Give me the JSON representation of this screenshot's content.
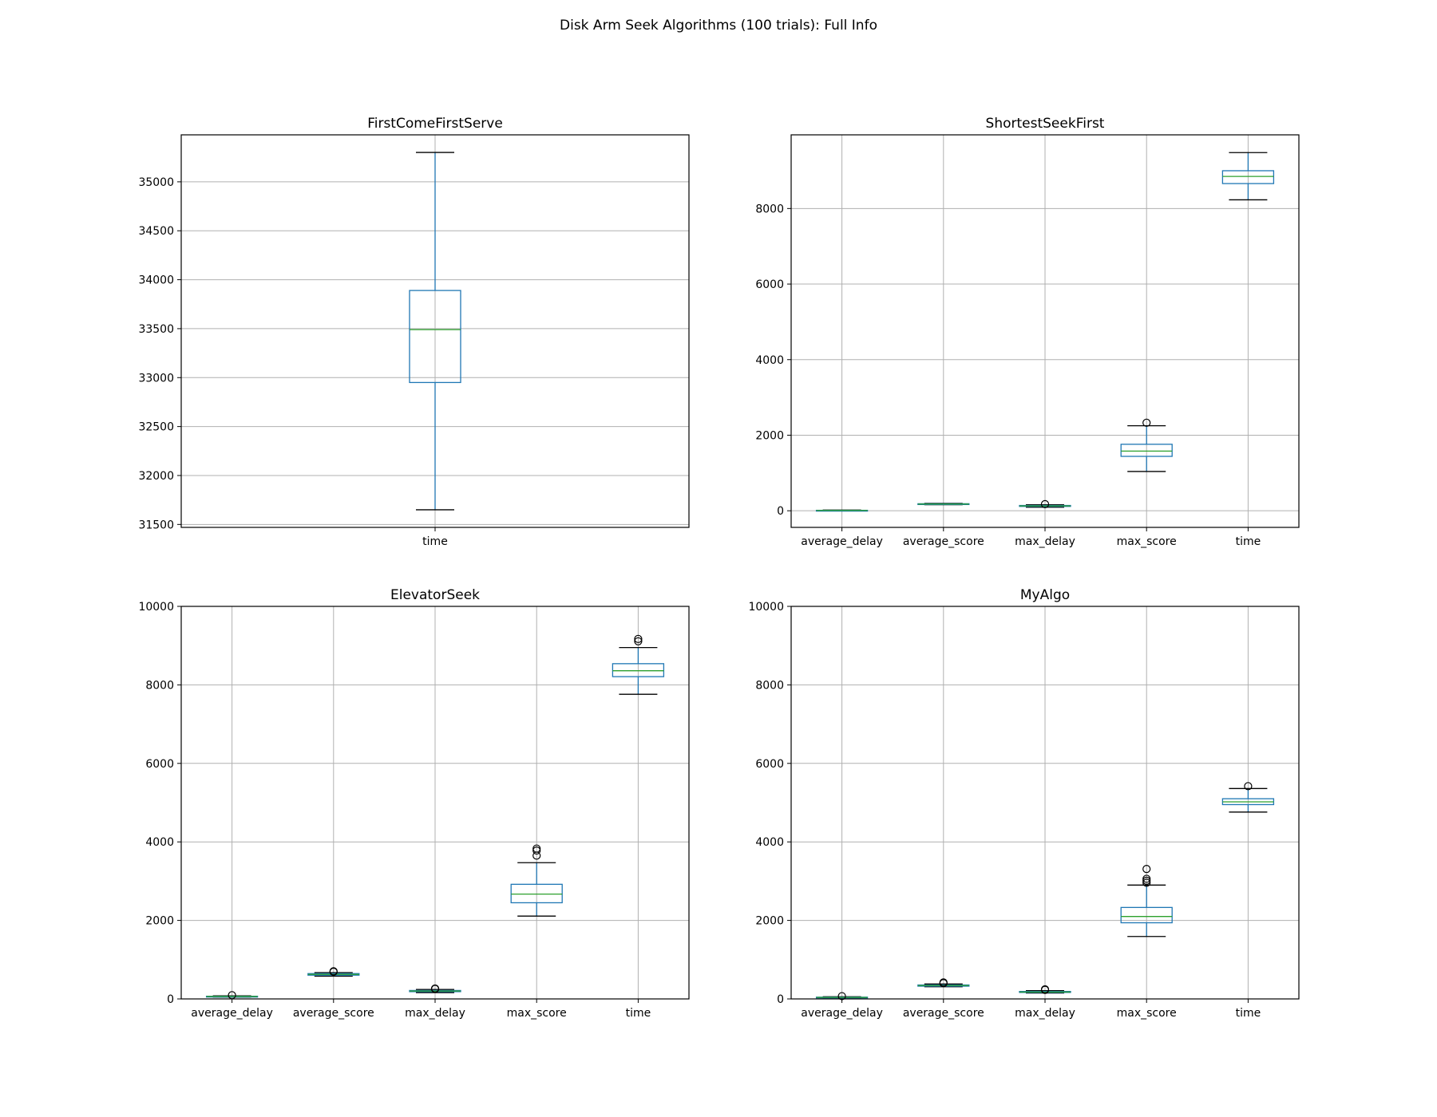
{
  "figure": {
    "title": "Disk Arm Seek Algorithms (100 trials): Full Info"
  },
  "colors": {
    "box": "#1f77b4",
    "median": "#2ca02c",
    "whisker_cap": "#000000",
    "grid": "#b0b0b0",
    "frame": "#000000"
  },
  "chart_data": [
    {
      "type": "box",
      "title": "FirstComeFirstServe",
      "xlabel": "",
      "ylabel": "",
      "grid": true,
      "ylim": [
        31470,
        35480
      ],
      "yticks": [
        31500,
        32000,
        32500,
        33000,
        33500,
        34000,
        34500,
        35000
      ],
      "categories": [
        "time"
      ],
      "boxes": [
        {
          "name": "time",
          "whislo": 31650,
          "q1": 32950,
          "med": 33490,
          "q3": 33890,
          "whishi": 35300,
          "fliers": []
        }
      ]
    },
    {
      "type": "box",
      "title": "ShortestSeekFirst",
      "xlabel": "",
      "ylabel": "",
      "grid": true,
      "ylim": [
        -440,
        9950
      ],
      "yticks": [
        0,
        2000,
        4000,
        6000,
        8000
      ],
      "categories": [
        "average_delay",
        "average_score",
        "max_delay",
        "max_score",
        "time"
      ],
      "boxes": [
        {
          "name": "average_delay",
          "whislo": 0,
          "q1": 5,
          "med": 8,
          "q3": 12,
          "whishi": 20,
          "fliers": []
        },
        {
          "name": "average_score",
          "whislo": 160,
          "q1": 170,
          "med": 178,
          "q3": 186,
          "whishi": 195,
          "fliers": []
        },
        {
          "name": "max_delay",
          "whislo": 95,
          "q1": 115,
          "med": 128,
          "q3": 140,
          "whishi": 160,
          "fliers": [
            175
          ]
        },
        {
          "name": "max_score",
          "whislo": 1040,
          "q1": 1440,
          "med": 1580,
          "q3": 1760,
          "whishi": 2250,
          "fliers": [
            2330
          ]
        },
        {
          "name": "time",
          "whislo": 8230,
          "q1": 8660,
          "med": 8850,
          "q3": 9000,
          "whishi": 9480,
          "fliers": []
        }
      ]
    },
    {
      "type": "box",
      "title": "ElevatorSeek",
      "xlabel": "",
      "ylabel": "",
      "grid": true,
      "ylim": [
        0,
        10000
      ],
      "yticks": [
        0,
        2000,
        4000,
        6000,
        8000,
        10000
      ],
      "categories": [
        "average_delay",
        "average_score",
        "max_delay",
        "max_score",
        "time"
      ],
      "boxes": [
        {
          "name": "average_delay",
          "whislo": 45,
          "q1": 55,
          "med": 62,
          "q3": 68,
          "whishi": 78,
          "fliers": [
            95
          ]
        },
        {
          "name": "average_score",
          "whislo": 580,
          "q1": 605,
          "med": 625,
          "q3": 645,
          "whishi": 670,
          "fliers": [
            690,
            705
          ]
        },
        {
          "name": "max_delay",
          "whislo": 160,
          "q1": 185,
          "med": 200,
          "q3": 215,
          "whishi": 240,
          "fliers": [
            255,
            265
          ]
        },
        {
          "name": "max_score",
          "whislo": 2110,
          "q1": 2450,
          "med": 2670,
          "q3": 2920,
          "whishi": 3470,
          "fliers": [
            3650,
            3780,
            3830
          ]
        },
        {
          "name": "time",
          "whislo": 7760,
          "q1": 8210,
          "med": 8360,
          "q3": 8540,
          "whishi": 8950,
          "fliers": [
            9110,
            9170
          ]
        }
      ]
    },
    {
      "type": "box",
      "title": "MyAlgo",
      "xlabel": "",
      "ylabel": "",
      "grid": true,
      "ylim": [
        0,
        10000
      ],
      "yticks": [
        0,
        2000,
        4000,
        6000,
        8000,
        10000
      ],
      "categories": [
        "average_delay",
        "average_score",
        "max_delay",
        "max_score",
        "time"
      ],
      "boxes": [
        {
          "name": "average_delay",
          "whislo": 25,
          "q1": 32,
          "med": 38,
          "q3": 45,
          "whishi": 55,
          "fliers": [
            70
          ]
        },
        {
          "name": "average_score",
          "whislo": 310,
          "q1": 325,
          "med": 340,
          "q3": 355,
          "whishi": 380,
          "fliers": [
            400,
            420
          ]
        },
        {
          "name": "max_delay",
          "whislo": 150,
          "q1": 165,
          "med": 175,
          "q3": 190,
          "whishi": 210,
          "fliers": [
            230,
            245
          ]
        },
        {
          "name": "max_score",
          "whislo": 1590,
          "q1": 1940,
          "med": 2100,
          "q3": 2330,
          "whishi": 2900,
          "fliers": [
            2960,
            3010,
            3060,
            3310
          ]
        },
        {
          "name": "time",
          "whislo": 4760,
          "q1": 4950,
          "med": 5020,
          "q3": 5100,
          "whishi": 5360,
          "fliers": [
            5420
          ]
        }
      ]
    }
  ]
}
